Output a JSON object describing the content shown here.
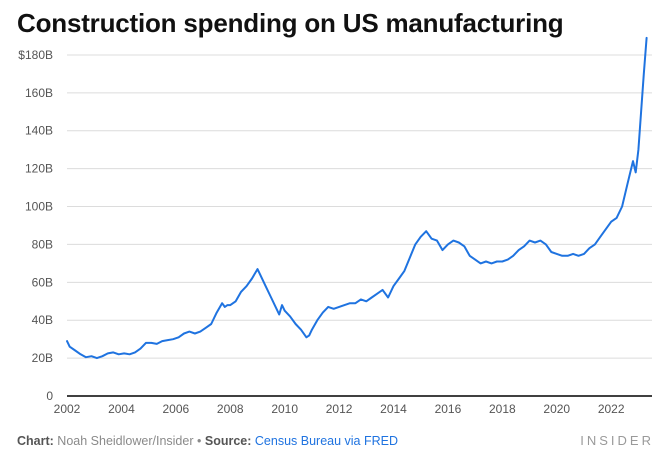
{
  "title": "Construction spending on US manufacturing",
  "footer": {
    "chart_label": "Chart:",
    "chart_author": "Noah Sheidlower/Insider",
    "separator": "•",
    "source_label": "Source:",
    "source_link": "Census Bureau via FRED",
    "brand": "INSIDER"
  },
  "colors": {
    "line": "#1f73e0",
    "grid": "#dcdcdc",
    "axis": "#000000"
  },
  "chart_data": {
    "type": "line",
    "title": "Construction spending on US manufacturing",
    "xlabel": "",
    "ylabel": "",
    "xlim": [
      2002,
      2023.5
    ],
    "ylim": [
      0,
      190
    ],
    "y_ticks": [
      0,
      20,
      40,
      60,
      80,
      100,
      120,
      140,
      160,
      180
    ],
    "y_tick_labels": [
      "0",
      "20B",
      "40B",
      "60B",
      "80B",
      "100B",
      "120B",
      "140B",
      "160B",
      "$180B"
    ],
    "x_ticks": [
      2002,
      2004,
      2006,
      2008,
      2010,
      2012,
      2014,
      2016,
      2018,
      2020,
      2022
    ],
    "x_tick_labels": [
      "2002",
      "2004",
      "2006",
      "2008",
      "2010",
      "2012",
      "2014",
      "2016",
      "2018",
      "2020",
      "2022"
    ],
    "grid": true,
    "series": [
      {
        "x": [
          2002.0,
          2002.1,
          2002.3,
          2002.5,
          2002.7,
          2002.9,
          2003.1,
          2003.3,
          2003.5,
          2003.7,
          2003.9,
          2004.1,
          2004.3,
          2004.5,
          2004.7,
          2004.9,
          2005.1,
          2005.3,
          2005.5,
          2005.7,
          2005.9,
          2006.1,
          2006.3,
          2006.5,
          2006.7,
          2006.9,
          2007.1,
          2007.3,
          2007.5,
          2007.7,
          2007.8,
          2007.9,
          2008.0,
          2008.2,
          2008.4,
          2008.6,
          2008.8,
          2009.0,
          2009.1,
          2009.3,
          2009.5,
          2009.7,
          2009.8,
          2009.9,
          2010.0,
          2010.2,
          2010.4,
          2010.6,
          2010.8,
          2010.9,
          2011.0,
          2011.2,
          2011.4,
          2011.6,
          2011.8,
          2012.0,
          2012.2,
          2012.4,
          2012.6,
          2012.8,
          2013.0,
          2013.2,
          2013.4,
          2013.6,
          2013.8,
          2014.0,
          2014.2,
          2014.4,
          2014.6,
          2014.8,
          2015.0,
          2015.2,
          2015.4,
          2015.6,
          2015.8,
          2016.0,
          2016.2,
          2016.4,
          2016.6,
          2016.8,
          2017.0,
          2017.2,
          2017.4,
          2017.6,
          2017.8,
          2018.0,
          2018.2,
          2018.4,
          2018.6,
          2018.8,
          2019.0,
          2019.2,
          2019.4,
          2019.6,
          2019.8,
          2020.0,
          2020.2,
          2020.4,
          2020.6,
          2020.8,
          2021.0,
          2021.2,
          2021.4,
          2021.6,
          2021.8,
          2022.0,
          2022.2,
          2022.4,
          2022.6,
          2022.8,
          2022.9,
          2023.0,
          2023.1,
          2023.2,
          2023.3
        ],
        "values": [
          29,
          26,
          24,
          22,
          20.5,
          21,
          20,
          21,
          22.5,
          23,
          22,
          22.5,
          22,
          23,
          25,
          28,
          28,
          27.5,
          29,
          29.5,
          30,
          31,
          33,
          34,
          33,
          34,
          36,
          38,
          44,
          49,
          47,
          48,
          48,
          50,
          55,
          58,
          62,
          67,
          64,
          58,
          52,
          46,
          43,
          48,
          45,
          42,
          38,
          35,
          31,
          32,
          35,
          40,
          44,
          47,
          46,
          47,
          48,
          49,
          49,
          51,
          50,
          52,
          54,
          56,
          52,
          58,
          62,
          66,
          73,
          80,
          84,
          87,
          83,
          82,
          77,
          80,
          82,
          81,
          79,
          74,
          72,
          70,
          71,
          70,
          71,
          71,
          72,
          74,
          77,
          79,
          82,
          81,
          82,
          80,
          76,
          75,
          74,
          74,
          75,
          74,
          75,
          78,
          80,
          84,
          88,
          92,
          94,
          100,
          112,
          124,
          118,
          130,
          150,
          170,
          189
        ]
      }
    ]
  }
}
